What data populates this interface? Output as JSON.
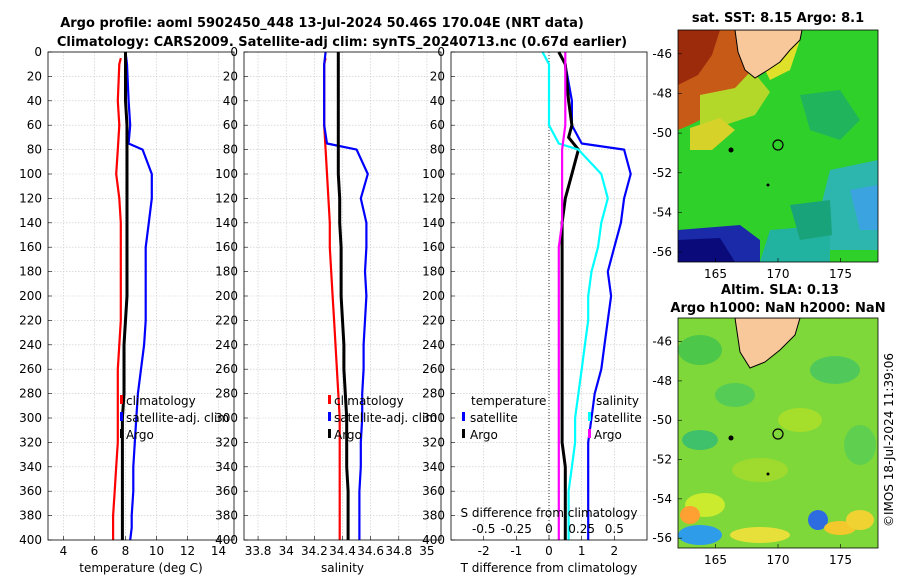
{
  "title": {
    "line1": "Argo profile: aoml 5902450_448 13-Jul-2024 50.46S 170.04E (NRT data)",
    "line2": "Climatology: CARS2009. Satellite-adj clim: synTS_20240713.nc (0.67d earlier)"
  },
  "watermark": "©IMOS 18-Jul-2024 11:39:06",
  "depth_ticks": [
    0,
    20,
    40,
    60,
    80,
    100,
    120,
    140,
    160,
    180,
    200,
    220,
    240,
    260,
    280,
    300,
    320,
    340,
    360,
    380,
    400
  ],
  "chart_data": [
    {
      "type": "line",
      "id": "temperature",
      "xlabel": "temperature (deg C)",
      "ylabel": "",
      "xlim": [
        3,
        15
      ],
      "ylim": [
        400,
        0
      ],
      "xticks": [
        4,
        6,
        8,
        10,
        12,
        14
      ],
      "legend": [
        "climatology",
        "satellite-adj. clim",
        "Argo"
      ],
      "series": [
        {
          "name": "climatology",
          "color": "#ff0000",
          "x": [
            7.7,
            7.6,
            7.5,
            7.6,
            7.5,
            7.4,
            7.6,
            7.7,
            7.7,
            7.7,
            7.7,
            7.7,
            7.6,
            7.5,
            7.5,
            7.5,
            7.5,
            7.4,
            7.3,
            7.2,
            7.2
          ],
          "y": [
            5,
            10,
            40,
            60,
            80,
            100,
            120,
            140,
            160,
            180,
            200,
            220,
            240,
            260,
            280,
            300,
            320,
            340,
            360,
            380,
            400
          ]
        },
        {
          "name": "satellite-adj. clim",
          "color": "#0000ff",
          "x": [
            8.0,
            8.1,
            8.2,
            8.3,
            8.2,
            9.1,
            9.7,
            9.7,
            9.5,
            9.3,
            9.3,
            9.3,
            9.3,
            9.2,
            9.0,
            8.8,
            8.7,
            8.6,
            8.5,
            8.5,
            8.4,
            8.4,
            8.3
          ],
          "y": [
            0,
            10,
            40,
            60,
            75,
            80,
            100,
            120,
            140,
            160,
            180,
            200,
            220,
            240,
            260,
            280,
            300,
            320,
            340,
            360,
            380,
            390,
            400
          ]
        },
        {
          "name": "Argo",
          "color": "#000000",
          "x": [
            8.0,
            8.0,
            8.0,
            8.1,
            8.1,
            8.1,
            8.1,
            8.1,
            8.1,
            8.1,
            8.1,
            8.1,
            8.0,
            7.9,
            7.9,
            7.9,
            7.8,
            7.8,
            7.8,
            7.8,
            7.8,
            7.8,
            7.8
          ],
          "y": [
            0,
            10,
            40,
            60,
            75,
            80,
            100,
            120,
            140,
            160,
            180,
            200,
            220,
            240,
            260,
            280,
            300,
            320,
            340,
            360,
            380,
            390,
            400
          ]
        }
      ]
    },
    {
      "type": "line",
      "id": "salinity",
      "xlabel": "salinity",
      "xlim": [
        33.7,
        35.1
      ],
      "ylim": [
        400,
        0
      ],
      "xticks": [
        33.8,
        34,
        34.2,
        34.4,
        34.6,
        34.8,
        35
      ],
      "legend": [
        "climatology",
        "satellite-adj. clim",
        "Argo"
      ],
      "series": [
        {
          "name": "climatology",
          "color": "#ff0000",
          "x": [
            34.28,
            34.27,
            34.27,
            34.27,
            34.28,
            34.29,
            34.3,
            34.31,
            34.31,
            34.32,
            34.33,
            34.34,
            34.35,
            34.36,
            34.37,
            34.38,
            34.38,
            34.38,
            34.38,
            34.38,
            34.38
          ],
          "y": [
            5,
            10,
            40,
            60,
            80,
            100,
            120,
            140,
            160,
            180,
            200,
            220,
            240,
            260,
            280,
            300,
            320,
            340,
            360,
            380,
            400
          ]
        },
        {
          "name": "satellite-adj. clim",
          "color": "#0000ff",
          "x": [
            34.28,
            34.27,
            34.27,
            34.27,
            34.29,
            34.5,
            34.58,
            34.53,
            34.57,
            34.57,
            34.56,
            34.57,
            34.56,
            34.55,
            34.55,
            34.54,
            34.54,
            34.53,
            34.53,
            34.52,
            34.52
          ],
          "y": [
            0,
            10,
            40,
            60,
            75,
            80,
            100,
            120,
            140,
            160,
            180,
            200,
            220,
            240,
            260,
            280,
            300,
            320,
            340,
            360,
            400
          ]
        },
        {
          "name": "Argo",
          "color": "#000000",
          "x": [
            34.37,
            34.37,
            34.37,
            34.37,
            34.37,
            34.37,
            34.38,
            34.38,
            34.39,
            34.39,
            34.39,
            34.4,
            34.41,
            34.41,
            34.42,
            34.43,
            34.43,
            34.43,
            34.44,
            34.44,
            34.44
          ],
          "y": [
            0,
            10,
            40,
            60,
            80,
            100,
            120,
            140,
            160,
            180,
            200,
            220,
            240,
            260,
            280,
            300,
            320,
            340,
            360,
            380,
            400
          ]
        }
      ]
    },
    {
      "type": "line",
      "id": "difference",
      "xlabel": "T difference from climatology",
      "xlabel_top": "S difference from climatology",
      "xlim": [
        -3,
        3
      ],
      "ylim": [
        400,
        0
      ],
      "xticks": [
        -2,
        -1,
        0,
        1,
        2
      ],
      "xticks_top_labels": [
        "-0.5",
        "-0.25",
        "0",
        "0.25",
        "0.5"
      ],
      "xticks_top_pos": [
        -2,
        -1,
        0,
        1,
        2
      ],
      "legend_left_title": "temperature",
      "legend_right_title": "salinity",
      "legend_left": [
        "satellite",
        "Argo"
      ],
      "legend_right": [
        "satellite",
        "Argo"
      ],
      "series": [
        {
          "name": "T satellite",
          "color": "#0000ff",
          "x": [
            0.3,
            0.5,
            0.7,
            0.7,
            1.0,
            2.3,
            2.5,
            2.3,
            2.2,
            2.0,
            1.8,
            1.9,
            1.8,
            1.7,
            1.6,
            1.4,
            1.3,
            1.2,
            1.2,
            1.2,
            1.2
          ],
          "y": [
            0,
            10,
            40,
            60,
            75,
            80,
            100,
            120,
            140,
            160,
            180,
            200,
            220,
            240,
            260,
            280,
            300,
            320,
            340,
            360,
            400
          ]
        },
        {
          "name": "T Argo",
          "color": "#000000",
          "x": [
            0.3,
            0.5,
            0.6,
            0.7,
            0.6,
            0.9,
            0.7,
            0.5,
            0.4,
            0.4,
            0.4,
            0.4,
            0.4,
            0.4,
            0.4,
            0.4,
            0.4,
            0.4,
            0.5,
            0.5,
            0.5,
            0.5
          ],
          "y": [
            0,
            10,
            40,
            60,
            70,
            80,
            100,
            120,
            140,
            160,
            180,
            200,
            220,
            240,
            260,
            280,
            300,
            320,
            340,
            360,
            380,
            400
          ]
        },
        {
          "name": "S satellite",
          "color": "#00ffff",
          "x": [
            -0.2,
            0.0,
            0.0,
            0.0,
            0.3,
            0.9,
            1.6,
            1.8,
            1.6,
            1.5,
            1.3,
            1.2,
            1.2,
            1.1,
            1.0,
            0.9,
            0.8,
            0.8,
            0.7,
            0.6,
            0.6
          ],
          "y": [
            0,
            10,
            40,
            60,
            75,
            80,
            100,
            120,
            140,
            160,
            180,
            200,
            220,
            240,
            260,
            280,
            300,
            320,
            340,
            360,
            400
          ]
        },
        {
          "name": "S Argo",
          "color": "#ff00ff",
          "x": [
            0.5,
            0.5,
            0.5,
            0.5,
            0.4,
            0.4,
            0.4,
            0.4,
            0.3,
            0.3,
            0.3,
            0.3,
            0.3,
            0.3,
            0.3,
            0.3,
            0.3,
            0.3,
            0.3,
            0.3,
            0.3
          ],
          "y": [
            0,
            10,
            40,
            60,
            80,
            100,
            120,
            140,
            160,
            180,
            200,
            220,
            240,
            260,
            280,
            300,
            320,
            340,
            360,
            380,
            400
          ]
        }
      ]
    },
    {
      "type": "heatmap",
      "id": "sst_map",
      "title": "sat. SST: 8.15 Argo: 8.1",
      "xlim": [
        162,
        178
      ],
      "ylim": [
        -56.5,
        -44.8
      ],
      "xticks": [
        165,
        170,
        175
      ],
      "yticks": [
        -46,
        -48,
        -50,
        -52,
        -54,
        -56
      ],
      "marker": {
        "lon": 170.04,
        "lat": -50.46
      }
    },
    {
      "type": "heatmap",
      "id": "sla_map",
      "title_line1": "Altim. SLA: 0.13",
      "title_line2": "Argo h1000: NaN h2000: NaN",
      "xlim": [
        162,
        178
      ],
      "ylim": [
        -56.5,
        -44.8
      ],
      "xticks": [
        165,
        170,
        175
      ],
      "yticks": [
        -46,
        -48,
        -50,
        -52,
        -54,
        -56
      ],
      "marker": {
        "lon": 170.04,
        "lat": -50.46
      }
    }
  ]
}
